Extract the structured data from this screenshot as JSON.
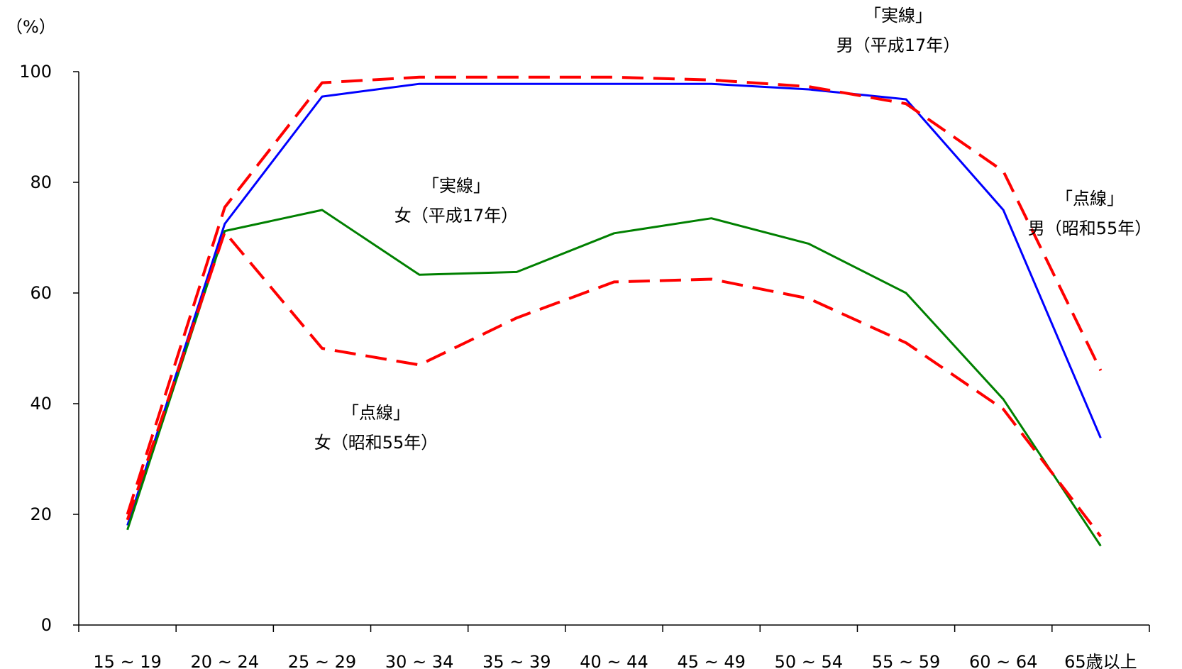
{
  "chart_data": {
    "type": "line",
    "ylabel": "（%）",
    "ylim": [
      0,
      100
    ],
    "y_ticks": [
      0,
      20,
      40,
      60,
      80,
      100
    ],
    "categories": [
      "15 ~ 19",
      "20 ~ 24",
      "25 ~ 29",
      "30 ~ 34",
      "35 ~ 39",
      "40 ~ 44",
      "45 ~ 49",
      "50 ~ 54",
      "55 ~ 59",
      "60 ~ 64",
      "65歳以上"
    ],
    "series": [
      {
        "name": "男（平成17年）",
        "style": "solid",
        "color": "#0000ff",
        "values": [
          18.0,
          72.5,
          95.5,
          97.8,
          97.8,
          97.8,
          97.8,
          96.8,
          95.0,
          75.0,
          33.8
        ]
      },
      {
        "name": "男（昭和55年）",
        "style": "dashed",
        "color": "#ff0000",
        "values": [
          20.0,
          75.5,
          98.0,
          99.0,
          99.0,
          99.0,
          98.5,
          97.3,
          94.2,
          82.0,
          46.0
        ]
      },
      {
        "name": "女（平成17年）",
        "style": "solid",
        "color": "#008000",
        "values": [
          17.2,
          71.2,
          75.0,
          63.3,
          63.8,
          70.8,
          73.5,
          68.9,
          60.0,
          40.8,
          14.3
        ]
      },
      {
        "name": "女（昭和55年）",
        "style": "dashed",
        "color": "#ff0000",
        "values": [
          19.0,
          71.0,
          50.0,
          47.0,
          55.5,
          62.0,
          62.5,
          59.0,
          51.0,
          39.0,
          16.0
        ]
      }
    ],
    "annotations": [
      {
        "lines": [
          "「実線」",
          "男（平成17年）"
        ],
        "target": "男（平成17年）"
      },
      {
        "lines": [
          "「点線」",
          "男（昭和55年）"
        ],
        "target": "男（昭和55年）"
      },
      {
        "lines": [
          "「実線」",
          "女（平成17年）"
        ],
        "target": "女（平成17年）"
      },
      {
        "lines": [
          "「点線」",
          "女（昭和55年）"
        ],
        "target": "女（昭和55年）"
      }
    ]
  }
}
